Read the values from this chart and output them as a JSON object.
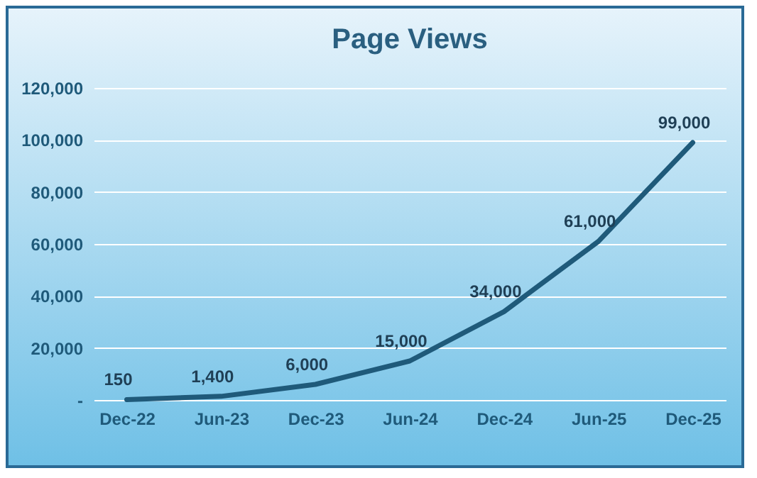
{
  "chart_data": {
    "type": "line",
    "title": "Page Views",
    "categories": [
      "Dec-22",
      "Jun-23",
      "Dec-23",
      "Jun-24",
      "Dec-24",
      "Jun-25",
      "Dec-25"
    ],
    "values": [
      150,
      1400,
      6000,
      15000,
      34000,
      61000,
      99000
    ],
    "value_labels": [
      "150",
      "1,400",
      "6,000",
      "15,000",
      "34,000",
      "61,000",
      "99,000"
    ],
    "color": "#1f5a7a",
    "ylim": [
      0,
      120000
    ],
    "yticks": [
      {
        "value": 0,
        "label": "-"
      },
      {
        "value": 20000,
        "label": "20,000"
      },
      {
        "value": 40000,
        "label": "40,000"
      },
      {
        "value": 60000,
        "label": "60,000"
      },
      {
        "value": 80000,
        "label": "80,000"
      },
      {
        "value": 100000,
        "label": "100,000"
      },
      {
        "value": 120000,
        "label": "120,000"
      }
    ],
    "grid": "y"
  }
}
